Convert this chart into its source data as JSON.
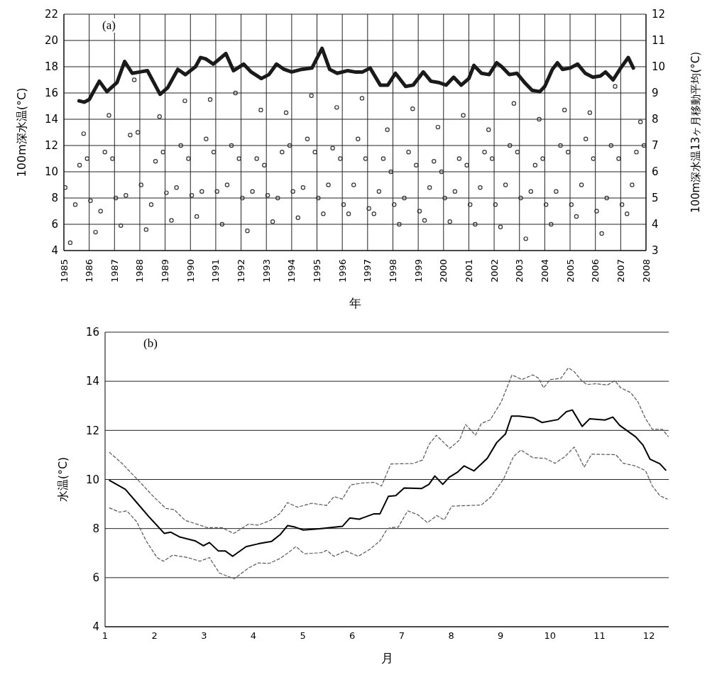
{
  "chart_data": [
    {
      "type": "scatter",
      "annotations": [
        "(a)"
      ],
      "xlabel": "年",
      "ylabel": "100m深水温(°C)",
      "y2label": "100m深水温13ヶ月移動平均(°C)",
      "xlim": [
        1985,
        2008
      ],
      "xticks": [
        1985,
        1986,
        1987,
        1988,
        1989,
        1990,
        1991,
        1992,
        1993,
        1994,
        1995,
        1996,
        1997,
        1998,
        1999,
        2000,
        2001,
        2002,
        2003,
        2004,
        2005,
        2006,
        2007,
        2008
      ],
      "ylim": [
        4,
        22
      ],
      "yticks": [
        4,
        6,
        8,
        10,
        12,
        14,
        16,
        18,
        20,
        22
      ],
      "y2lim": [
        3,
        12
      ],
      "y2ticks": [
        3,
        4,
        5,
        6,
        7,
        8,
        9,
        10,
        11,
        12
      ],
      "grid": true,
      "series": [
        {
          "marker": "circle",
          "color": "#333333",
          "x": [
            1985.05,
            1985.25,
            1985.45,
            1985.62,
            1985.78,
            1985.92,
            1986.05,
            1986.25,
            1986.45,
            1986.62,
            1986.78,
            1986.92,
            1987.05,
            1987.25,
            1987.45,
            1987.62,
            1987.78,
            1987.92,
            1988.05,
            1988.25,
            1988.45,
            1988.62,
            1988.78,
            1988.92,
            1989.05,
            1989.25,
            1989.45,
            1989.62,
            1989.78,
            1989.92,
            1990.05,
            1990.25,
            1990.45,
            1990.62,
            1990.78,
            1990.92,
            1991.05,
            1991.25,
            1991.45,
            1991.62,
            1991.78,
            1991.92,
            1992.05,
            1992.25,
            1992.45,
            1992.62,
            1992.78,
            1992.92,
            1993.05,
            1993.25,
            1993.45,
            1993.62,
            1993.78,
            1993.92,
            1994.05,
            1994.25,
            1994.45,
            1994.62,
            1994.78,
            1994.92,
            1995.05,
            1995.25,
            1995.45,
            1995.62,
            1995.78,
            1995.92,
            1996.05,
            1996.25,
            1996.45,
            1996.62,
            1996.78,
            1996.92,
            1997.05,
            1997.25,
            1997.45,
            1997.62,
            1997.78,
            1997.92,
            1998.05,
            1998.25,
            1998.45,
            1998.62,
            1998.78,
            1998.92,
            1999.05,
            1999.25,
            1999.45,
            1999.62,
            1999.78,
            1999.92,
            2000.05,
            2000.25,
            2000.45,
            2000.62,
            2000.78,
            2000.92,
            2001.05,
            2001.25,
            2001.45,
            2001.62,
            2001.78,
            2001.92,
            2002.05,
            2002.25,
            2002.45,
            2002.62,
            2002.78,
            2002.92,
            2003.05,
            2003.25,
            2003.45,
            2003.62,
            2003.78,
            2003.92,
            2004.05,
            2004.25,
            2004.45,
            2004.62,
            2004.78,
            2004.92,
            2005.05,
            2005.25,
            2005.45,
            2005.62,
            2005.78,
            2005.92,
            2006.05,
            2006.25,
            2006.45,
            2006.62,
            2006.78,
            2006.92,
            2007.05,
            2007.25,
            2007.45,
            2007.62,
            2007.78,
            2007.92
          ],
          "values": [
            8.8,
            4.6,
            7.5,
            10.5,
            12.9,
            11.0,
            7.8,
            5.4,
            7.0,
            11.5,
            14.3,
            11.0,
            8.0,
            5.9,
            8.2,
            12.8,
            17.0,
            13.0,
            9.0,
            5.6,
            7.5,
            10.8,
            14.2,
            11.5,
            8.4,
            6.3,
            8.8,
            12.0,
            15.4,
            11.0,
            8.2,
            6.6,
            8.5,
            12.5,
            15.5,
            11.5,
            8.5,
            6.0,
            9.0,
            12.0,
            16.0,
            11.0,
            8.0,
            5.5,
            8.5,
            11.0,
            14.7,
            10.5,
            8.2,
            6.2,
            8.0,
            11.5,
            14.5,
            12.0,
            8.5,
            6.5,
            8.8,
            12.5,
            15.8,
            11.5,
            8.0,
            6.8,
            9.0,
            11.8,
            14.9,
            11.0,
            7.5,
            6.8,
            9.0,
            12.5,
            15.6,
            11.0,
            7.2,
            6.8,
            8.5,
            11.0,
            13.2,
            10.0,
            7.5,
            6.0,
            8.0,
            11.5,
            14.8,
            10.5,
            7.0,
            6.3,
            8.8,
            10.8,
            13.4,
            10.0,
            8.0,
            6.2,
            8.5,
            11.0,
            14.3,
            10.5,
            7.5,
            6.0,
            8.8,
            11.5,
            13.2,
            11.0,
            7.5,
            5.8,
            9.0,
            12.0,
            15.2,
            11.5,
            8.0,
            4.9,
            8.5,
            10.5,
            14.0,
            11.0,
            7.5,
            6.0,
            8.5,
            12.0,
            14.7,
            11.5,
            7.5,
            6.6,
            9.0,
            12.5,
            14.5,
            11.0,
            7.0,
            5.3,
            8.0,
            12.0,
            16.5,
            11.0,
            7.5,
            6.8,
            9.0,
            11.5,
            13.8,
            12.0
          ]
        },
        {
          "type": "line",
          "axis": "y2",
          "marker": "none",
          "line_style": "solid",
          "color": "#1a1a1a",
          "x": [
            1985.6,
            1985.8,
            1986.0,
            1986.4,
            1986.7,
            1987.1,
            1987.4,
            1987.7,
            1988.0,
            1988.3,
            1988.8,
            1989.1,
            1989.5,
            1989.8,
            1990.2,
            1990.4,
            1990.6,
            1990.9,
            1991.4,
            1991.7,
            1992.1,
            1992.4,
            1992.8,
            1993.1,
            1993.4,
            1993.7,
            1994.0,
            1994.4,
            1994.8,
            1995.2,
            1995.5,
            1995.8,
            1996.2,
            1996.5,
            1996.8,
            1997.1,
            1997.5,
            1997.8,
            1998.1,
            1998.5,
            1998.8,
            1999.2,
            1999.5,
            1999.8,
            2000.1,
            2000.4,
            2000.7,
            2001.0,
            2001.2,
            2001.5,
            2001.8,
            2002.1,
            2002.3,
            2002.6,
            2002.9,
            2003.2,
            2003.5,
            2003.8,
            2004.0,
            2004.3,
            2004.5,
            2004.7,
            2005.0,
            2005.3,
            2005.6,
            2005.9,
            2006.2,
            2006.4,
            2006.7,
            2007.0,
            2007.3,
            2007.5
          ],
          "values": [
            8.7,
            8.65,
            8.75,
            9.45,
            9.05,
            9.4,
            10.2,
            9.75,
            9.8,
            9.85,
            8.95,
            9.2,
            9.9,
            9.7,
            10.0,
            10.35,
            10.3,
            10.1,
            10.5,
            9.85,
            10.1,
            9.8,
            9.55,
            9.7,
            10.1,
            9.9,
            9.8,
            9.9,
            9.95,
            10.7,
            9.9,
            9.75,
            9.85,
            9.8,
            9.8,
            9.95,
            9.3,
            9.3,
            9.75,
            9.25,
            9.3,
            9.8,
            9.45,
            9.4,
            9.3,
            9.6,
            9.3,
            9.55,
            10.05,
            9.75,
            9.7,
            10.15,
            10.0,
            9.7,
            9.75,
            9.4,
            9.1,
            9.05,
            9.25,
            9.9,
            10.15,
            9.9,
            9.95,
            10.1,
            9.75,
            9.6,
            9.65,
            9.8,
            9.5,
            9.95,
            10.35,
            9.95
          ]
        }
      ]
    },
    {
      "type": "line",
      "annotations": [
        "(b)"
      ],
      "xlabel": "月",
      "ylabel": "水温(°C)",
      "xlim": [
        1,
        12.4
      ],
      "xticks": [
        1,
        2,
        3,
        4,
        5,
        6,
        7,
        8,
        9,
        10,
        11,
        12
      ],
      "ylim": [
        4,
        16
      ],
      "yticks": [
        4,
        6,
        8,
        10,
        12,
        14,
        16
      ],
      "grid": "y",
      "series": [
        {
          "marker": "none",
          "line_style": "dashed",
          "color": "#555555",
          "x": [
            1.09,
            1.34,
            1.64,
            1.98,
            2.23,
            2.4,
            2.62,
            2.92,
            3.06,
            3.36,
            3.6,
            3.9,
            4.1,
            4.34,
            4.54,
            4.69,
            4.89,
            5.18,
            5.48,
            5.63,
            5.8,
            5.97,
            6.22,
            6.46,
            6.59,
            6.78,
            7.23,
            7.42,
            7.55,
            7.7,
            7.97,
            8.17,
            8.29,
            8.49,
            8.61,
            8.79,
            9.01,
            9.23,
            9.43,
            9.65,
            9.77,
            9.87,
            10.0,
            10.22,
            10.37,
            10.49,
            10.64,
            10.74,
            10.94,
            11.16,
            11.31,
            11.43,
            11.63,
            11.78,
            11.93,
            12.07,
            12.27,
            12.39
          ],
          "values": [
            11.1,
            10.66,
            10.03,
            9.3,
            8.82,
            8.77,
            8.33,
            8.14,
            8.04,
            8.04,
            7.8,
            8.18,
            8.14,
            8.33,
            8.62,
            9.06,
            8.87,
            9.03,
            8.94,
            9.3,
            9.2,
            9.78,
            9.86,
            9.88,
            9.73,
            10.63,
            10.65,
            10.79,
            11.42,
            11.8,
            11.27,
            11.61,
            12.24,
            11.8,
            12.28,
            12.43,
            13.15,
            14.26,
            14.07,
            14.26,
            14.12,
            13.73,
            14.07,
            14.12,
            14.55,
            14.39,
            14.02,
            13.87,
            13.9,
            13.85,
            14.02,
            13.73,
            13.54,
            13.15,
            12.48,
            12.04,
            12.04,
            11.75
          ]
        },
        {
          "marker": "none",
          "line_style": "solid",
          "color": "#000000",
          "x": [
            1.09,
            1.41,
            1.64,
            1.91,
            2.2,
            2.33,
            2.52,
            2.82,
            2.99,
            3.11,
            3.29,
            3.43,
            3.58,
            3.85,
            4.1,
            4.37,
            4.54,
            4.69,
            4.84,
            5.01,
            5.33,
            5.8,
            5.95,
            6.14,
            6.44,
            6.56,
            6.73,
            6.88,
            7.05,
            7.4,
            7.55,
            7.67,
            7.83,
            7.96,
            8.13,
            8.26,
            8.46,
            8.73,
            8.92,
            9.1,
            9.22,
            9.37,
            9.66,
            9.84,
            10.16,
            10.33,
            10.45,
            10.65,
            10.8,
            11.11,
            11.27,
            11.41,
            11.73,
            11.88,
            12.02,
            12.22,
            12.34
          ],
          "values": [
            9.96,
            9.6,
            9.06,
            8.43,
            7.8,
            7.85,
            7.65,
            7.5,
            7.3,
            7.43,
            7.09,
            7.09,
            6.87,
            7.26,
            7.38,
            7.48,
            7.75,
            8.12,
            8.06,
            7.94,
            7.99,
            8.09,
            8.43,
            8.38,
            8.6,
            8.6,
            9.31,
            9.34,
            9.65,
            9.63,
            9.8,
            10.14,
            9.8,
            10.09,
            10.3,
            10.55,
            10.35,
            10.86,
            11.5,
            11.86,
            12.58,
            12.58,
            12.51,
            12.32,
            12.44,
            12.76,
            12.83,
            12.16,
            12.47,
            12.42,
            12.54,
            12.2,
            11.74,
            11.4,
            10.83,
            10.64,
            10.38
          ]
        },
        {
          "marker": "none",
          "line_style": "dashed",
          "color": "#555555",
          "x": [
            1.09,
            1.29,
            1.44,
            1.64,
            1.83,
            2.05,
            2.18,
            2.37,
            2.67,
            2.92,
            3.11,
            3.31,
            3.61,
            3.9,
            4.1,
            4.32,
            4.54,
            4.74,
            4.86,
            5.03,
            5.38,
            5.48,
            5.63,
            5.87,
            6.12,
            6.36,
            6.56,
            6.71,
            6.78,
            6.93,
            7.12,
            7.32,
            7.52,
            7.71,
            7.86,
            8.01,
            8.61,
            8.81,
            9.06,
            9.26,
            9.41,
            9.65,
            9.9,
            10.1,
            10.3,
            10.49,
            10.69,
            10.84,
            11.33,
            11.48,
            11.73,
            11.93,
            12.07,
            12.22,
            12.37
          ],
          "values": [
            8.84,
            8.67,
            8.72,
            8.28,
            7.5,
            6.82,
            6.67,
            6.92,
            6.82,
            6.67,
            6.82,
            6.19,
            5.95,
            6.39,
            6.6,
            6.58,
            6.78,
            7.07,
            7.27,
            6.97,
            7.02,
            7.11,
            6.87,
            7.09,
            6.87,
            7.16,
            7.5,
            7.99,
            8.04,
            8.06,
            8.72,
            8.57,
            8.24,
            8.53,
            8.35,
            8.91,
            8.96,
            9.3,
            10.02,
            10.93,
            11.2,
            10.89,
            10.86,
            10.66,
            10.93,
            11.32,
            10.5,
            11.03,
            11.01,
            10.66,
            10.55,
            10.36,
            9.73,
            9.34,
            9.2
          ]
        }
      ]
    }
  ]
}
